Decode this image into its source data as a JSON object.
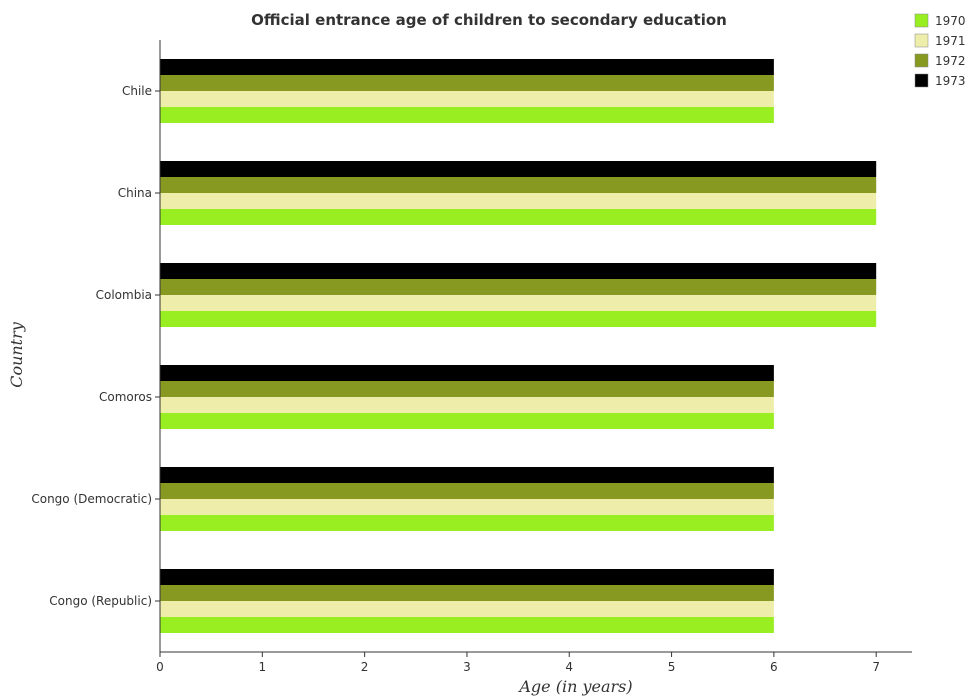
{
  "chart_data": {
    "type": "bar",
    "orientation": "horizontal",
    "title": "Official entrance age of children to secondary education",
    "xlabel": "Age (in years)",
    "ylabel": "Country",
    "categories": [
      "Chile",
      "China",
      "Colombia",
      "Comoros",
      "Congo (Democratic)",
      "Congo (Republic)"
    ],
    "series": [
      {
        "name": "1970",
        "color": "#99ee22",
        "values": [
          6,
          7,
          7,
          6,
          6,
          6
        ]
      },
      {
        "name": "1971",
        "color": "#eeeeaa",
        "values": [
          6,
          7,
          7,
          6,
          6,
          6
        ]
      },
      {
        "name": "1972",
        "color": "#889922",
        "values": [
          6,
          7,
          7,
          6,
          6,
          6
        ]
      },
      {
        "name": "1973",
        "color": "#000000",
        "values": [
          6,
          7,
          7,
          6,
          6,
          6
        ]
      }
    ],
    "xlim": [
      0,
      7.35
    ],
    "xticks": [
      "0",
      "1",
      "2",
      "3",
      "4",
      "5",
      "6",
      "7"
    ],
    "legend_position": "top-right",
    "grid": false
  }
}
